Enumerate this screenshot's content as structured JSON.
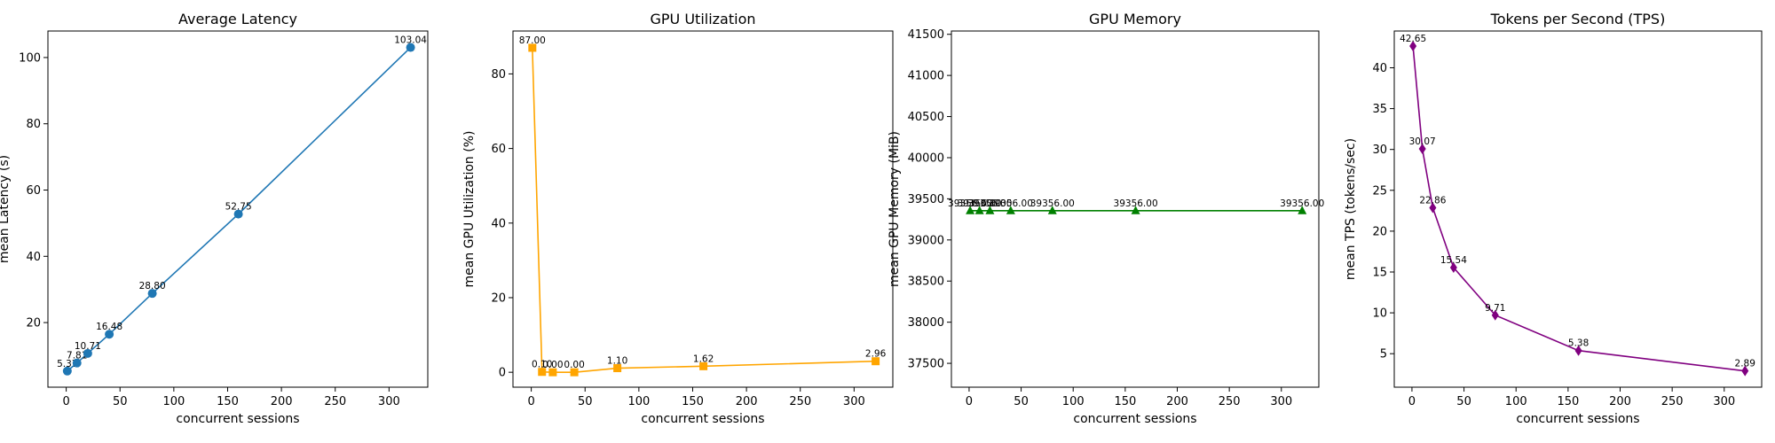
{
  "chart_data": [
    {
      "type": "line",
      "title": "Average Latency",
      "xlabel": "concurrent sessions",
      "ylabel": "mean Latency (s)",
      "x": [
        1,
        10,
        20,
        40,
        80,
        160,
        320
      ],
      "values": [
        5.37,
        7.81,
        10.71,
        16.48,
        28.8,
        52.75,
        103.04
      ],
      "labels": [
        "5.37",
        "7.81",
        "10.71",
        "16.48",
        "28.80",
        "52.75",
        "103.04"
      ],
      "xlim": [
        -17,
        336
      ],
      "ylim": [
        0.5,
        108
      ],
      "xticks": [
        0,
        50,
        100,
        150,
        200,
        250,
        300
      ],
      "yticks": [
        20,
        40,
        60,
        80,
        100
      ],
      "color": "#1f77b4",
      "marker": "circle",
      "grid": false
    },
    {
      "type": "line",
      "title": "GPU Utilization",
      "xlabel": "concurrent sessions",
      "ylabel": "mean GPU Utilization (%)",
      "x": [
        1,
        10,
        20,
        40,
        80,
        160,
        320
      ],
      "values": [
        87.0,
        0.1,
        0.0,
        0.0,
        1.1,
        1.62,
        2.96
      ],
      "labels": [
        "87.00",
        "0.10",
        "0.00",
        "0.00",
        "1.10",
        "1.62",
        "2.96"
      ],
      "xlim": [
        -17,
        336
      ],
      "ylim": [
        -4,
        91.5
      ],
      "xticks": [
        0,
        50,
        100,
        150,
        200,
        250,
        300
      ],
      "yticks": [
        0,
        20,
        40,
        60,
        80
      ],
      "color": "#ffa500",
      "marker": "square",
      "grid": false
    },
    {
      "type": "line",
      "title": "GPU Memory",
      "xlabel": "concurrent sessions",
      "ylabel": "mean GPU Memory (MiB)",
      "x": [
        1,
        10,
        20,
        40,
        80,
        160,
        320
      ],
      "values": [
        39356,
        39356,
        39356,
        39356,
        39356,
        39356,
        39356
      ],
      "labels": [
        "39356.00",
        "39356.00",
        "39356.00",
        "39356.00",
        "39356.00",
        "39356.00",
        "39356.00"
      ],
      "xlim": [
        -17,
        336
      ],
      "ylim": [
        37210,
        41540
      ],
      "xticks": [
        0,
        50,
        100,
        150,
        200,
        250,
        300
      ],
      "yticks": [
        37500,
        38000,
        38500,
        39000,
        39500,
        40000,
        40500,
        41000,
        41500
      ],
      "color": "#008000",
      "marker": "triangle",
      "grid": false
    },
    {
      "type": "line",
      "title": "Tokens per Second (TPS)",
      "xlabel": "concurrent sessions",
      "ylabel": "mean TPS (tokens/sec)",
      "x": [
        1,
        10,
        20,
        40,
        80,
        160,
        320
      ],
      "values": [
        42.65,
        30.07,
        22.86,
        15.54,
        9.71,
        5.38,
        2.89
      ],
      "labels": [
        "42.65",
        "30.07",
        "22.86",
        "15.54",
        "9.71",
        "5.38",
        "2.89"
      ],
      "xlim": [
        -17,
        336
      ],
      "ylim": [
        0.9,
        44.5
      ],
      "xticks": [
        0,
        50,
        100,
        150,
        200,
        250,
        300
      ],
      "yticks": [
        5,
        10,
        15,
        20,
        25,
        30,
        35,
        40
      ],
      "color": "#800080",
      "marker": "diamond",
      "grid": false
    }
  ]
}
